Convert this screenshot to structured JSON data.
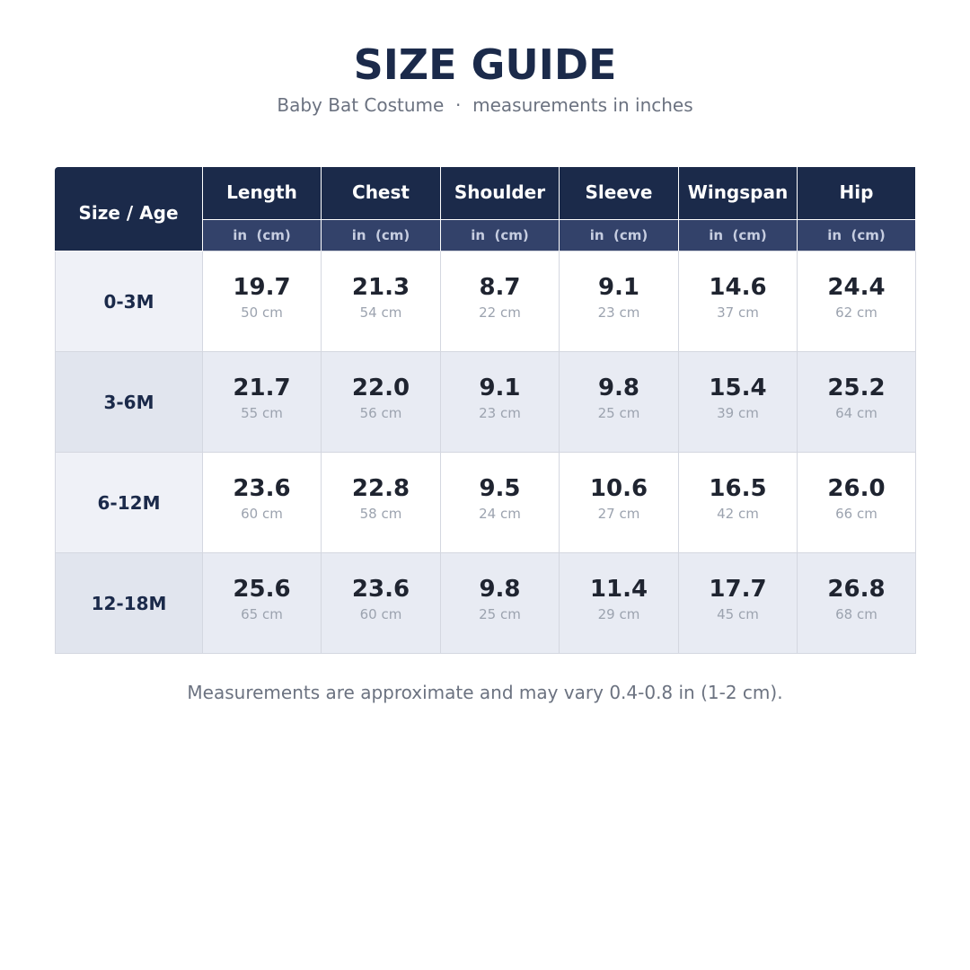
{
  "header": {
    "title": "SIZE GUIDE",
    "subtitle": "Baby Bat Costume  ·  measurements in inches"
  },
  "table": {
    "corner": "Size / Age",
    "columns": [
      "Length",
      "Chest",
      "Shoulder",
      "Sleeve",
      "Wingspan",
      "Hip"
    ],
    "unit_labels": [
      "in  (cm)",
      "in  (cm)",
      "in  (cm)",
      "in  (cm)",
      "in  (cm)",
      "in  (cm)"
    ],
    "rows": [
      {
        "label": "0-3M",
        "cells": [
          {
            "in": "19.7",
            "cm": "50 cm"
          },
          {
            "in": "21.3",
            "cm": "54 cm"
          },
          {
            "in": "8.7",
            "cm": "22 cm"
          },
          {
            "in": "9.1",
            "cm": "23 cm"
          },
          {
            "in": "14.6",
            "cm": "37 cm"
          },
          {
            "in": "24.4",
            "cm": "62 cm"
          }
        ]
      },
      {
        "label": "3-6M",
        "cells": [
          {
            "in": "21.7",
            "cm": "55 cm"
          },
          {
            "in": "22.0",
            "cm": "56 cm"
          },
          {
            "in": "9.1",
            "cm": "23 cm"
          },
          {
            "in": "9.8",
            "cm": "25 cm"
          },
          {
            "in": "15.4",
            "cm": "39 cm"
          },
          {
            "in": "25.2",
            "cm": "64 cm"
          }
        ]
      },
      {
        "label": "6-12M",
        "cells": [
          {
            "in": "23.6",
            "cm": "60 cm"
          },
          {
            "in": "22.8",
            "cm": "58 cm"
          },
          {
            "in": "9.5",
            "cm": "24 cm"
          },
          {
            "in": "10.6",
            "cm": "27 cm"
          },
          {
            "in": "16.5",
            "cm": "42 cm"
          },
          {
            "in": "26.0",
            "cm": "66 cm"
          }
        ]
      },
      {
        "label": "12-18M",
        "cells": [
          {
            "in": "25.6",
            "cm": "65 cm"
          },
          {
            "in": "23.6",
            "cm": "60 cm"
          },
          {
            "in": "9.8",
            "cm": "25 cm"
          },
          {
            "in": "11.4",
            "cm": "29 cm"
          },
          {
            "in": "17.7",
            "cm": "45 cm"
          },
          {
            "in": "26.8",
            "cm": "68 cm"
          }
        ]
      }
    ]
  },
  "footnote": "Measurements are approximate and may vary 0.4-0.8 in (1-2 cm)."
}
